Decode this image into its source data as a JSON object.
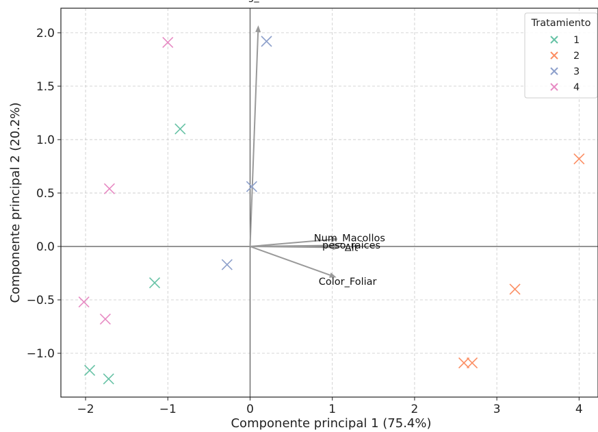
{
  "chart_data": {
    "type": "scatter",
    "xlabel": "Componente principal 1 (75.4%)",
    "ylabel": "Componente principal 2 (20.2%)",
    "xlim": [
      -2.3,
      4.23
    ],
    "ylim": [
      -1.41,
      2.23
    ],
    "xticks": [
      -2,
      -1,
      0,
      1,
      2,
      3,
      4
    ],
    "yticks": [
      -1.0,
      -0.5,
      0.0,
      0.5,
      1.0,
      1.5,
      2.0
    ],
    "xtick_labels": [
      "−2",
      "−1",
      "0",
      "1",
      "2",
      "3",
      "4"
    ],
    "ytick_labels": [
      "−1.0",
      "−0.5",
      "0.0",
      "0.5",
      "1.0",
      "1.5",
      "2.0"
    ],
    "grid": true,
    "legend": {
      "title": "Tratamiento",
      "position": "top-right"
    },
    "series": [
      {
        "name": "1",
        "color": "#66c2a5",
        "points": [
          [
            -0.85,
            1.1
          ],
          [
            -1.16,
            -0.34
          ],
          [
            -1.95,
            -1.16
          ],
          [
            -1.72,
            -1.24
          ]
        ]
      },
      {
        "name": "2",
        "color": "#fc8d62",
        "points": [
          [
            4.0,
            0.82
          ],
          [
            3.22,
            -0.4
          ],
          [
            2.6,
            -1.09
          ],
          [
            2.7,
            -1.09
          ]
        ]
      },
      {
        "name": "3",
        "color": "#8da0cb",
        "points": [
          [
            0.2,
            1.92
          ],
          [
            0.02,
            0.56
          ],
          [
            -0.28,
            -0.17
          ]
        ]
      },
      {
        "name": "4",
        "color": "#e78ac3",
        "points": [
          [
            -1.0,
            1.91
          ],
          [
            -1.71,
            0.54
          ],
          [
            -2.02,
            -0.52
          ],
          [
            -1.76,
            -0.68
          ]
        ]
      }
    ],
    "loadings": [
      {
        "name": "Long_raices",
        "x": 0.1,
        "y": 2.07
      },
      {
        "name": "Num_Macollos",
        "x": 1.07,
        "y": 0.07
      },
      {
        "name": "peso_raices",
        "x": 1.09,
        "y": 0.01
      },
      {
        "name": "Alt",
        "x": 1.09,
        "y": -0.01
      },
      {
        "name": "Color_Foliar",
        "x": 1.05,
        "y": -0.29
      }
    ]
  }
}
